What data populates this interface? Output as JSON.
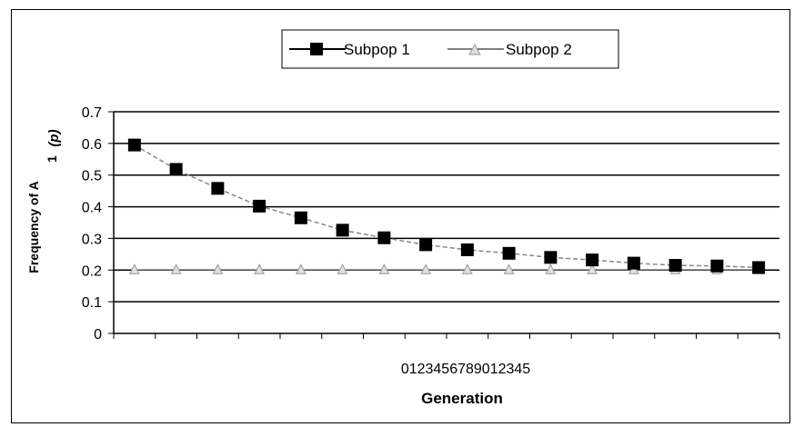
{
  "chart_data": {
    "type": "line",
    "title": "",
    "xlabel": "Generation",
    "ylabel": "Frequency of A",
    "ylabel_subscript": "1",
    "ylabel_suffix": "(p)",
    "x_tick_text": "0123456789012345",
    "x": [
      0,
      1,
      2,
      3,
      4,
      5,
      6,
      7,
      8,
      9,
      10,
      11,
      12,
      13,
      14,
      15
    ],
    "ylim": [
      0,
      0.7
    ],
    "y_ticks": [
      "0",
      "0.1",
      "0.2",
      "0.3",
      "0.4",
      "0.5",
      "0.6",
      "0.7"
    ],
    "grid": "horizontal",
    "legend_position": "top-center",
    "series": [
      {
        "name": "Subpop 1",
        "marker": "square",
        "color": "#000000",
        "values": [
          0.595,
          0.518,
          0.458,
          0.402,
          0.365,
          0.326,
          0.302,
          0.28,
          0.264,
          0.253,
          0.24,
          0.232,
          0.222,
          0.215,
          0.213,
          0.208
        ]
      },
      {
        "name": "Subpop 2",
        "marker": "triangle",
        "color": "#999999",
        "values": [
          0.2,
          0.2,
          0.2,
          0.2,
          0.2,
          0.2,
          0.2,
          0.2,
          0.2,
          0.2,
          0.2,
          0.2,
          0.2,
          0.2,
          0.2,
          0.2
        ]
      }
    ]
  }
}
